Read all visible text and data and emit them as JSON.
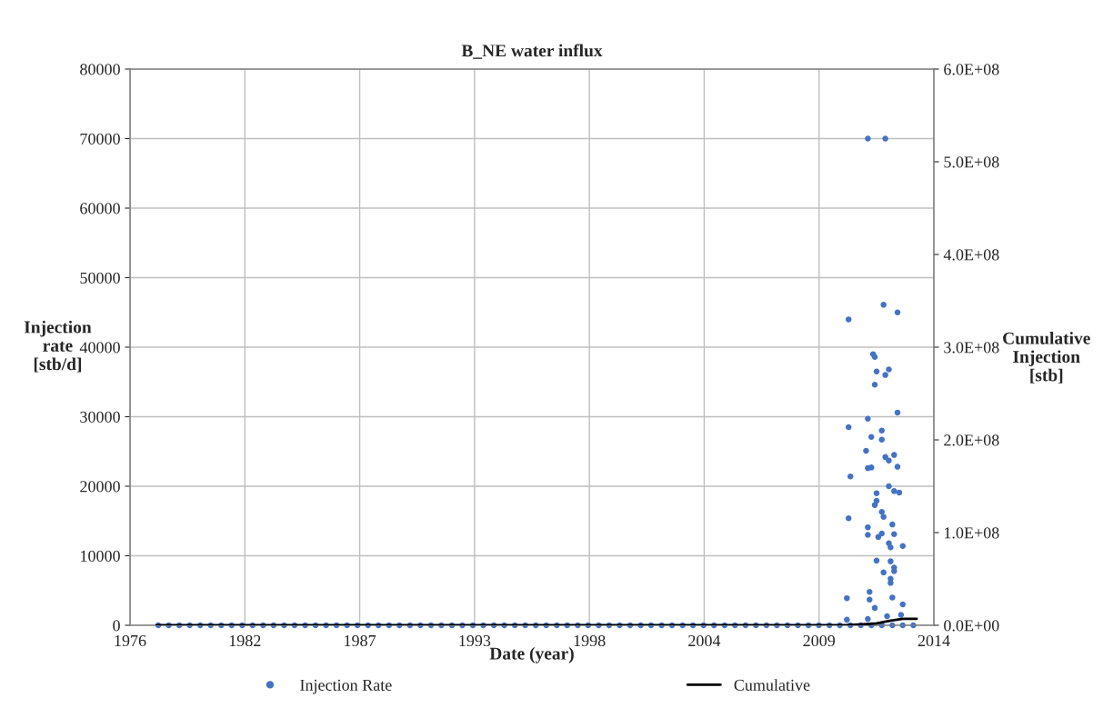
{
  "chart_data": {
    "type": "scatter",
    "title": "B_NE water influx",
    "xlabel": "Date (year)",
    "ylabel": "Injection\nrate\n[stb/d]",
    "y2label": "Cumulative\nInjection\n[stb]",
    "xlim": [
      "1976-08-26",
      "2014-12-25"
    ],
    "xticks": [
      {
        "value": "1976-08-26",
        "label": "1976"
      },
      {
        "value": "1982-02-16",
        "label": "1982"
      },
      {
        "value": "1987-08-09",
        "label": "1987"
      },
      {
        "value": "1993-01-29",
        "label": "1993"
      },
      {
        "value": "1998-07-22",
        "label": "1998"
      },
      {
        "value": "2004-01-12",
        "label": "2004"
      },
      {
        "value": "2009-07-04",
        "label": "2009"
      },
      {
        "value": "2014-12-25",
        "label": "2014"
      }
    ],
    "ylim": [
      0,
      80000
    ],
    "yticks": [
      0,
      10000,
      20000,
      30000,
      40000,
      50000,
      60000,
      70000,
      80000
    ],
    "y2lim": [
      0,
      600000000
    ],
    "y2ticks": [
      {
        "value": 0,
        "label": "0.0E+00"
      },
      {
        "value": 100000000,
        "label": "1.0E+08"
      },
      {
        "value": 200000000,
        "label": "2.0E+08"
      },
      {
        "value": 300000000,
        "label": "3.0E+08"
      },
      {
        "value": 400000000,
        "label": "4.0E+08"
      },
      {
        "value": 500000000,
        "label": "5.0E+08"
      },
      {
        "value": 600000000,
        "label": "6.0E+08"
      }
    ],
    "grid": true,
    "legend": "bottom",
    "marker": "circle",
    "series": [
      {
        "name": "Injection Rate",
        "color": "#4472c4",
        "x": [
          "2011-11",
          "2012-09",
          "2012-08",
          "2010-12",
          "2013-04",
          "2012-02",
          "2012-03",
          "2012-04",
          "2012-09",
          "2012-11",
          "2012-03",
          "2010-12",
          "2011-11",
          "2013-04",
          "2012-01",
          "2012-07",
          "2012-07",
          "2011-10",
          "2012-09",
          "2013-02",
          "2012-11",
          "2011-11",
          "2012-01",
          "2013-04",
          "2011-01",
          "2012-04",
          "2012-11",
          "2013-02",
          "2013-05",
          "2012-04",
          "2012-03",
          "2012-07",
          "2012-08",
          "2010-12",
          "2011-11",
          "2013-01",
          "2012-07",
          "2011-11",
          "2013-02",
          "2012-05",
          "2012-11",
          "2012-12",
          "2013-07",
          "2012-04",
          "2012-12",
          "2013-02",
          "2013-02",
          "2012-08",
          "2012-12",
          "2012-12",
          "2010-11",
          "2011-12",
          "2011-12",
          "2012-03",
          "2013-01",
          "2013-07",
          "2010-11",
          "2011-11",
          "2012-10",
          "2013-06",
          "1978-01",
          "1978-07",
          "1979-01",
          "1979-07",
          "1980-01",
          "1980-07",
          "1981-01",
          "1981-07",
          "1982-01",
          "1982-07",
          "1983-01",
          "1983-07",
          "1984-01",
          "1984-07",
          "1985-01",
          "1985-07",
          "1986-01",
          "1986-07",
          "1987-01",
          "1987-07",
          "1988-01",
          "1988-07",
          "1989-01",
          "1989-07",
          "1990-01",
          "1990-07",
          "1991-01",
          "1991-07",
          "1992-01",
          "1992-07",
          "1993-01",
          "1993-07",
          "1994-01",
          "1994-07",
          "1995-01",
          "1995-07",
          "1996-01",
          "1996-07",
          "1997-01",
          "1997-07",
          "1998-01",
          "1998-07",
          "1999-01",
          "1999-07",
          "2000-01",
          "2000-07",
          "2001-01",
          "2001-07",
          "2002-01",
          "2002-07",
          "2003-01",
          "2003-07",
          "2004-01",
          "2004-07",
          "2005-01",
          "2005-07",
          "2006-01",
          "2006-07",
          "2007-01",
          "2007-07",
          "2008-01",
          "2008-07",
          "2009-01",
          "2009-07",
          "2010-01",
          "2010-07",
          "2011-01",
          "2011-07",
          "2012-01",
          "2012-07",
          "2013-01",
          "2013-07",
          "2014-01"
        ],
        "values": [
          70000,
          70000,
          46100,
          44000,
          45000,
          39000,
          38600,
          36500,
          36000,
          36800,
          34600,
          28500,
          29700,
          30600,
          27100,
          28000,
          26700,
          25100,
          24200,
          24500,
          23700,
          22600,
          22700,
          22800,
          21400,
          19000,
          20000,
          19300,
          19100,
          17900,
          17300,
          16300,
          15600,
          15400,
          14100,
          14500,
          13200,
          13000,
          13100,
          12700,
          11800,
          11200,
          11400,
          9300,
          9200,
          8300,
          7800,
          7600,
          6700,
          6100,
          3900,
          4800,
          3700,
          2500,
          4000,
          3000,
          800,
          900,
          1300,
          1500,
          0,
          0,
          0,
          0,
          0,
          0,
          0,
          0,
          0,
          0,
          0,
          0,
          0,
          0,
          0,
          0,
          0,
          0,
          0,
          0,
          0,
          0,
          0,
          0,
          0,
          0,
          0,
          0,
          0,
          0,
          0,
          0,
          0,
          0,
          0,
          0,
          0,
          0,
          0,
          0,
          0,
          0,
          0,
          0,
          0,
          0,
          0,
          0,
          0,
          0,
          0,
          0,
          0,
          0,
          0,
          0,
          0,
          0,
          0,
          0,
          0,
          0,
          0,
          0,
          0,
          0,
          0,
          0,
          0,
          0,
          0,
          0,
          0
        ]
      },
      {
        "name": "Cumulative",
        "type": "line",
        "axis": "y2",
        "color": "#000000",
        "marker": "none",
        "x": [
          "1977-12",
          "2010-10",
          "2011-08",
          "2012-04",
          "2012-12",
          "2013-07",
          "2014-03"
        ],
        "values": [
          0,
          0,
          1000000,
          2000000,
          5000000,
          7000000,
          7000000
        ]
      }
    ]
  }
}
